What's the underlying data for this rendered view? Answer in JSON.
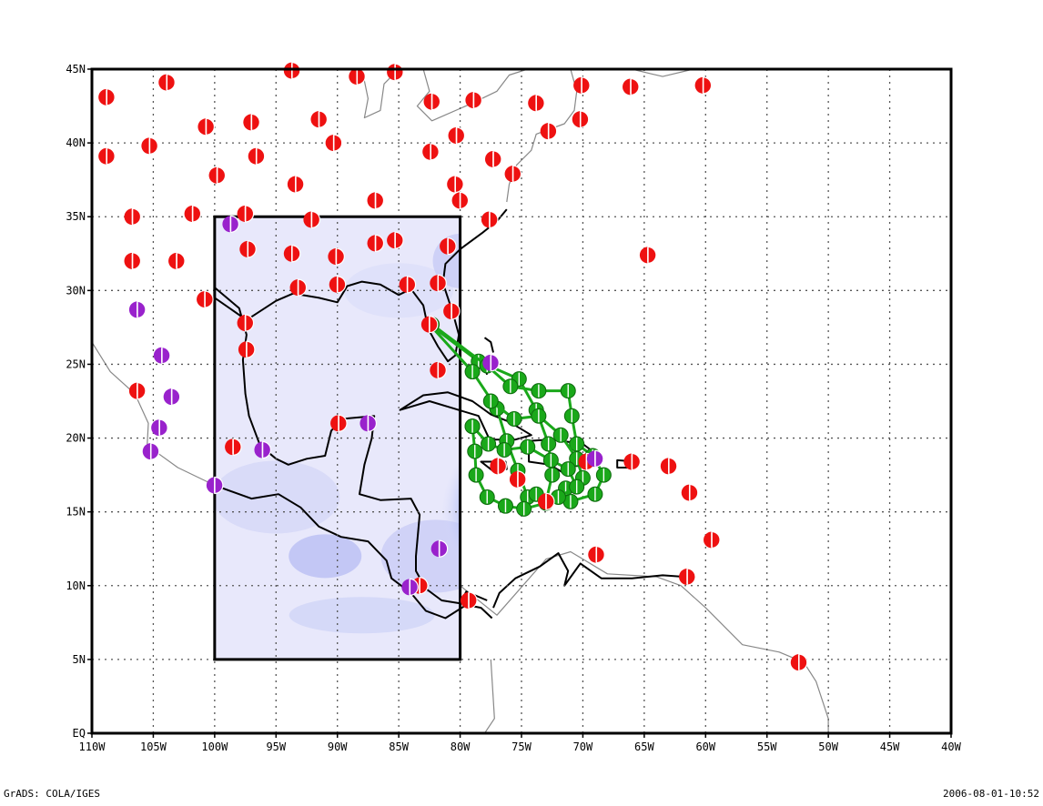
{
  "footer": {
    "left": "GrADS: COLA/IGES",
    "right": "2006-08-01-10:52"
  },
  "map": {
    "lon_range": [
      -110,
      -40
    ],
    "lat_range": [
      0,
      45
    ],
    "lon_tick_labels": [
      "110W",
      "105W",
      "100W",
      "95W",
      "90W",
      "85W",
      "80W",
      "75W",
      "70W",
      "65W",
      "60W",
      "55W",
      "50W",
      "45W",
      "40W"
    ],
    "lat_tick_labels": [
      "EQ",
      "5N",
      "10N",
      "15N",
      "20N",
      "25N",
      "30N",
      "35N",
      "40N",
      "45N"
    ],
    "grid": "dotted",
    "inner_domain": {
      "lon": [
        -100,
        -80
      ],
      "lat": [
        5,
        35
      ]
    },
    "colors": {
      "field_background": "#e8e8fb",
      "field_min": "#0a1ef0",
      "ensemble_track": "#1aa81a",
      "station_red": "#ee1111",
      "station_purple": "#9922cc",
      "coastline_inner": "#000000",
      "coastline_outer": "#888888"
    },
    "storm_center": {
      "lon": -73,
      "lat": 15
    },
    "stations_red": [
      [
        -108.8,
        43.1
      ],
      [
        -103.9,
        44.1
      ],
      [
        -93.7,
        44.9
      ],
      [
        -88.4,
        44.5
      ],
      [
        -85.3,
        44.8
      ],
      [
        -82.3,
        42.8
      ],
      [
        -78.9,
        42.9
      ],
      [
        -73.8,
        42.7
      ],
      [
        -70.1,
        43.9
      ],
      [
        -66.1,
        43.8
      ],
      [
        -60.2,
        43.9
      ],
      [
        -108.8,
        39.1
      ],
      [
        -105.3,
        39.8
      ],
      [
        -100.7,
        41.1
      ],
      [
        -99.8,
        37.8
      ],
      [
        -97.0,
        41.4
      ],
      [
        -96.6,
        39.1
      ],
      [
        -93.4,
        37.2
      ],
      [
        -91.5,
        41.6
      ],
      [
        -90.3,
        40.0
      ],
      [
        -86.9,
        36.1
      ],
      [
        -82.4,
        39.4
      ],
      [
        -80.3,
        40.5
      ],
      [
        -80.4,
        37.2
      ],
      [
        -80.0,
        36.1
      ],
      [
        -77.3,
        38.9
      ],
      [
        -75.7,
        37.9
      ],
      [
        -72.8,
        40.8
      ],
      [
        -70.2,
        41.6
      ],
      [
        -106.7,
        35.0
      ],
      [
        -106.7,
        32.0
      ],
      [
        -103.1,
        32.0
      ],
      [
        -101.8,
        35.2
      ],
      [
        -100.8,
        29.4
      ],
      [
        -97.5,
        35.2
      ],
      [
        -97.3,
        32.8
      ],
      [
        -97.5,
        27.8
      ],
      [
        -97.4,
        26.0
      ],
      [
        -93.7,
        32.5
      ],
      [
        -93.2,
        30.2
      ],
      [
        -92.1,
        34.8
      ],
      [
        -90.1,
        32.3
      ],
      [
        -90.0,
        30.4
      ],
      [
        -86.9,
        33.2
      ],
      [
        -85.3,
        33.4
      ],
      [
        -84.3,
        30.4
      ],
      [
        -81.8,
        30.5
      ],
      [
        -81.0,
        33.0
      ],
      [
        -80.7,
        28.6
      ],
      [
        -82.5,
        27.7
      ],
      [
        -81.8,
        24.6
      ],
      [
        -77.6,
        34.8
      ],
      [
        -64.7,
        32.4
      ],
      [
        -106.3,
        23.2
      ],
      [
        -98.5,
        19.4
      ],
      [
        -89.9,
        21.0
      ],
      [
        -83.3,
        10.0
      ],
      [
        -79.3,
        9.0
      ],
      [
        -76.9,
        18.1
      ],
      [
        -75.3,
        17.2
      ],
      [
        -73.0,
        15.7
      ],
      [
        -69.7,
        18.4
      ],
      [
        -66.0,
        18.4
      ],
      [
        -63.0,
        18.1
      ],
      [
        -61.3,
        16.3
      ],
      [
        -59.5,
        13.1
      ],
      [
        -61.5,
        10.6
      ],
      [
        -68.9,
        12.1
      ],
      [
        -52.4,
        4.8
      ]
    ],
    "stations_purple": [
      [
        -98.7,
        34.5
      ],
      [
        -106.3,
        28.7
      ],
      [
        -104.3,
        25.6
      ],
      [
        -103.5,
        22.8
      ],
      [
        -104.5,
        20.7
      ],
      [
        -105.2,
        19.1
      ],
      [
        -100.0,
        16.8
      ],
      [
        -96.1,
        19.2
      ],
      [
        -87.5,
        21.0
      ],
      [
        -81.7,
        12.5
      ],
      [
        -84.1,
        9.9
      ],
      [
        -77.5,
        25.1
      ],
      [
        -69.0,
        18.6
      ]
    ],
    "ensemble_tracks": [
      [
        [
          -82.5,
          27.7
        ],
        [
          -78.5,
          25.2
        ],
        [
          -75.2,
          24.0
        ],
        [
          -73.8,
          21.9
        ],
        [
          -72.8,
          19.6
        ],
        [
          -72.5,
          17.5
        ],
        [
          -73.0,
          15.7
        ]
      ],
      [
        [
          -82.5,
          27.7
        ],
        [
          -79.0,
          24.5
        ],
        [
          -77.0,
          22.0
        ],
        [
          -76.2,
          19.8
        ],
        [
          -75.3,
          17.8
        ],
        [
          -74.5,
          16.0
        ]
      ],
      [
        [
          -82.3,
          27.7
        ],
        [
          -77.8,
          24.9
        ],
        [
          -75.9,
          23.5
        ],
        [
          -73.6,
          23.2
        ],
        [
          -71.2,
          23.2
        ],
        [
          -70.9,
          21.5
        ],
        [
          -70.5,
          19.6
        ],
        [
          -69.2,
          18.8
        ],
        [
          -68.3,
          17.5
        ],
        [
          -69.0,
          16.2
        ],
        [
          -71.0,
          15.7
        ]
      ],
      [
        [
          -79.0,
          20.8
        ],
        [
          -78.8,
          19.1
        ],
        [
          -78.7,
          17.5
        ],
        [
          -77.8,
          16.0
        ],
        [
          -76.3,
          15.4
        ],
        [
          -74.8,
          15.2
        ],
        [
          -73.0,
          15.6
        ]
      ],
      [
        [
          -77.5,
          22.5
        ],
        [
          -75.6,
          21.3
        ],
        [
          -73.6,
          21.5
        ],
        [
          -71.8,
          20.2
        ],
        [
          -70.5,
          18.6
        ],
        [
          -70.0,
          17.3
        ],
        [
          -71.4,
          16.6
        ]
      ],
      [
        [
          -79.0,
          20.8
        ],
        [
          -77.7,
          19.6
        ],
        [
          -76.4,
          19.2
        ],
        [
          -74.5,
          19.4
        ],
        [
          -72.6,
          18.5
        ],
        [
          -71.2,
          17.9
        ],
        [
          -70.5,
          16.7
        ],
        [
          -72.0,
          16.0
        ],
        [
          -73.8,
          16.2
        ]
      ]
    ]
  }
}
